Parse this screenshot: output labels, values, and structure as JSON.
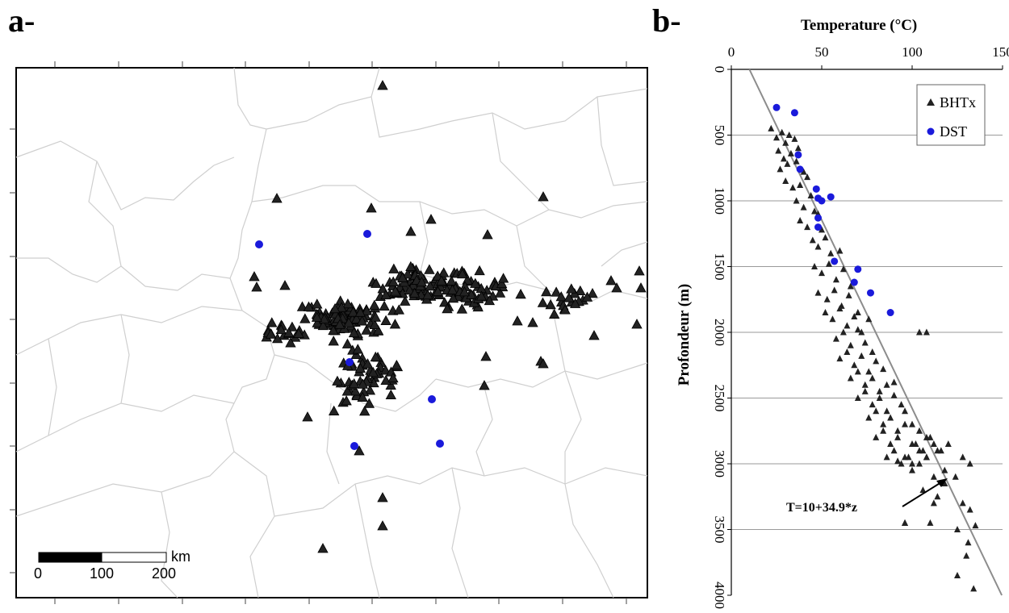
{
  "panel_a_label": "a-",
  "panel_b_label": "b-",
  "scalebar": {
    "unit": "km",
    "ticks": [
      "0",
      "100",
      "200"
    ]
  },
  "colors": {
    "bht": "#222222",
    "dst": "#1a1adb",
    "fit": "#8c8c8c",
    "borders": "#cfcfcf",
    "grid": "#9a9a9a"
  },
  "legend": {
    "bht": "BHTx",
    "dst": "DST"
  },
  "equation": "T=10+34.9*z",
  "chart_data": [
    {
      "type": "scatter",
      "panel": "a",
      "title": "",
      "description_of_content": "map of well locations",
      "series": [
        {
          "name": "BHTx",
          "marker": "triangle"
        },
        {
          "name": "DST",
          "marker": "circle"
        }
      ]
    },
    {
      "type": "scatter",
      "panel": "b",
      "title": "",
      "xlabel": "Temperature (°C)",
      "ylabel": "Profondeur (m)",
      "xlim": [
        0,
        150
      ],
      "ylim": [
        0,
        4000
      ],
      "y_inverted": true,
      "x_axis_position": "top",
      "xticks": [
        "0",
        "50",
        "100",
        "150"
      ],
      "yticks": [
        "0",
        "500",
        "1000",
        "1500",
        "2000",
        "2500",
        "3000",
        "3500",
        "4000"
      ],
      "grid": "horizontal",
      "legend_position": "top-right",
      "fit_line": {
        "label": "T=10+34.9*z",
        "intercept": 10,
        "slope_per_km": 34.9
      },
      "series": [
        {
          "name": "BHTx",
          "x": [
            22,
            25,
            28,
            30,
            32,
            35,
            26,
            29,
            33,
            37,
            27,
            31,
            36,
            40,
            30,
            34,
            38,
            42,
            36,
            40,
            44,
            48,
            38,
            42,
            46,
            50,
            45,
            48,
            52,
            55,
            60,
            46,
            50,
            54,
            58,
            62,
            66,
            48,
            53,
            57,
            61,
            65,
            70,
            52,
            56,
            60,
            64,
            68,
            72,
            76,
            58,
            62,
            66,
            70,
            74,
            78,
            60,
            64,
            68,
            72,
            76,
            80,
            84,
            66,
            70,
            74,
            78,
            82,
            86,
            90,
            70,
            74,
            78,
            82,
            86,
            90,
            94,
            104,
            108,
            76,
            80,
            84,
            88,
            92,
            96,
            100,
            80,
            84,
            88,
            92,
            96,
            100,
            104,
            108,
            86,
            90,
            94,
            98,
            102,
            106,
            110,
            114,
            92,
            96,
            100,
            104,
            108,
            112,
            116,
            120,
            100,
            104,
            108,
            112,
            118,
            96,
            106,
            112,
            110,
            124,
            128,
            132,
            118,
            125,
            135,
            131,
            125,
            130,
            134,
            96,
            114,
            132,
            128
          ],
          "y": [
            450,
            520,
            480,
            560,
            500,
            530,
            620,
            680,
            640,
            600,
            760,
            720,
            700,
            780,
            850,
            900,
            880,
            820,
            1000,
            1050,
            960,
            1100,
            1150,
            1200,
            1080,
            1220,
            1300,
            1350,
            1280,
            1400,
            1380,
            1500,
            1550,
            1480,
            1600,
            1520,
            1650,
            1700,
            1750,
            1680,
            1800,
            1720,
            1850,
            1850,
            1900,
            1820,
            1950,
            1880,
            2000,
            1900,
            2050,
            2000,
            2100,
            1980,
            2080,
            2150,
            2200,
            2150,
            2250,
            2180,
            2300,
            2220,
            2280,
            2350,
            2300,
            2400,
            2350,
            2450,
            2400,
            2380,
            2500,
            2450,
            2550,
            2500,
            2600,
            2480,
            2550,
            2000,
            2000,
            2650,
            2600,
            2700,
            2650,
            2750,
            2600,
            2700,
            2800,
            2750,
            2850,
            2800,
            2700,
            2850,
            2750,
            2800,
            2950,
            2900,
            3000,
            2950,
            2850,
            2900,
            2800,
            2900,
            2980,
            2950,
            3000,
            2900,
            2950,
            2850,
            2900,
            2850,
            3050,
            3000,
            2950,
            3100,
            3050,
            3450,
            3200,
            3300,
            3450,
            3100,
            3300,
            3350,
            3150,
            3500,
            3470,
            3600,
            3850,
            3700,
            3950,
            3450,
            3250,
            3000,
            2950
          ]
        },
        {
          "name": "DST",
          "x": [
            25,
            35,
            37,
            38,
            47,
            48,
            50,
            55,
            48,
            48,
            57,
            68,
            70,
            77,
            88
          ],
          "y": [
            290,
            330,
            650,
            760,
            910,
            980,
            1000,
            970,
            1130,
            1200,
            1460,
            1620,
            1520,
            1700,
            1850
          ]
        }
      ]
    }
  ]
}
